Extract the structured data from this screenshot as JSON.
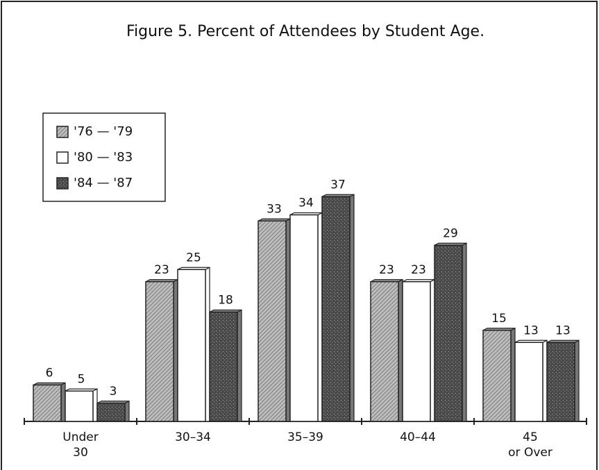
{
  "chart_data": {
    "type": "bar",
    "title": "Figure 5.  Percent of Attendees by Student Age.",
    "categories": [
      "Under\n30",
      "30–34",
      "35–39",
      "40–44",
      "45\nor Over"
    ],
    "series": [
      {
        "name": "'76 — '79",
        "color": "#9c9c9c",
        "values": [
          6,
          23,
          33,
          23,
          15
        ],
        "value_labels": [
          "6%",
          "23%",
          "33%",
          "23%",
          "15%"
        ]
      },
      {
        "name": "'80 — '83",
        "color": "#ffffff",
        "values": [
          5,
          25,
          34,
          23,
          13
        ],
        "value_labels": [
          "5%",
          "25%",
          "34%",
          "23%",
          "13%"
        ]
      },
      {
        "name": "'84 — '87",
        "color": "#585858",
        "values": [
          3,
          18,
          37,
          29,
          13
        ],
        "value_labels": [
          "3%",
          "18%",
          "37%",
          "29%",
          "13%"
        ]
      }
    ],
    "ylim": [
      0,
      40
    ],
    "legend": "upper left"
  }
}
